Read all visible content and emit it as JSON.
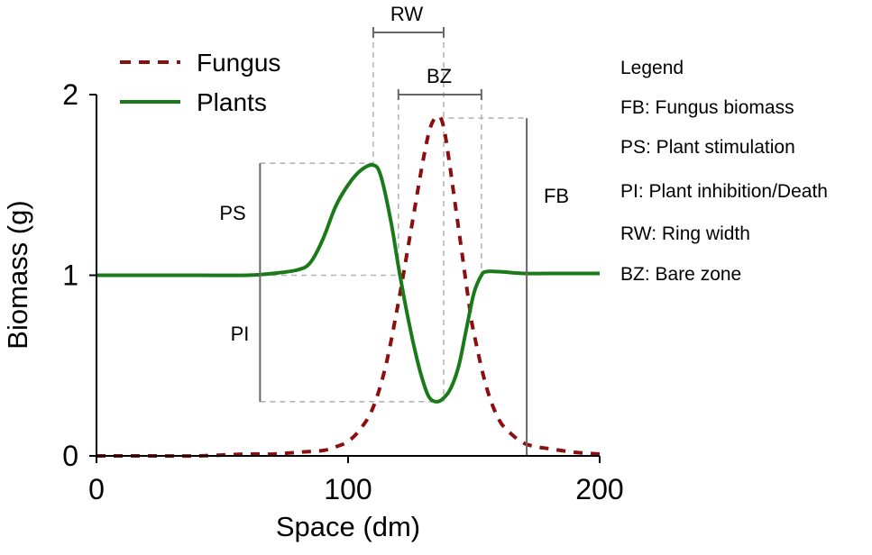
{
  "chart_data": {
    "type": "line",
    "title": "",
    "xlabel": "Space (dm)",
    "ylabel": "Biomass (g)",
    "xlim": [
      0,
      200
    ],
    "ylim": [
      0,
      2
    ],
    "xticks": [
      0,
      100,
      200
    ],
    "yticks": [
      0,
      1,
      2
    ],
    "xtick_labels": [
      "0",
      "100",
      "200"
    ],
    "ytick_labels": [
      "0",
      "1",
      "2"
    ],
    "grid": false,
    "legend_position": "top-left",
    "series": [
      {
        "name": "Fungus",
        "color": "#8b0f0f",
        "style": "dashed",
        "x": [
          0,
          20,
          40,
          60,
          70,
          80,
          90,
          95,
          100,
          105,
          110,
          115,
          120,
          125,
          130,
          133,
          136,
          138,
          140,
          142,
          145,
          148,
          150,
          155,
          160,
          165,
          170,
          175,
          180,
          190,
          200
        ],
        "y": [
          0,
          0,
          0,
          0.01,
          0.01,
          0.02,
          0.03,
          0.05,
          0.08,
          0.15,
          0.27,
          0.5,
          0.85,
          1.25,
          1.65,
          1.83,
          1.88,
          1.82,
          1.65,
          1.45,
          1.15,
          0.85,
          0.68,
          0.38,
          0.2,
          0.12,
          0.07,
          0.05,
          0.04,
          0.02,
          0.01
        ]
      },
      {
        "name": "Plants",
        "color": "#1a7a1a",
        "style": "solid",
        "x": [
          0,
          20,
          40,
          60,
          70,
          80,
          85,
          90,
          95,
          100,
          105,
          110,
          113,
          117,
          120,
          123,
          126,
          129,
          132,
          135,
          138,
          141,
          144,
          147,
          150,
          153,
          155,
          160,
          170,
          180,
          200
        ],
        "y": [
          1,
          1,
          1,
          1,
          1.01,
          1.03,
          1.07,
          1.2,
          1.38,
          1.5,
          1.58,
          1.61,
          1.55,
          1.3,
          1.05,
          0.82,
          0.62,
          0.45,
          0.33,
          0.3,
          0.32,
          0.38,
          0.5,
          0.7,
          0.9,
          1.0,
          1.02,
          1.02,
          1.01,
          1.01,
          1.01
        ]
      }
    ],
    "annotations": {
      "RW": {
        "label": "RW",
        "x_from": 110,
        "x_to": 138
      },
      "BZ": {
        "label": "BZ",
        "x_from": 120,
        "x_to": 153
      },
      "PS": {
        "label": "PS",
        "x": 65,
        "y_from": 1.0,
        "y_to": 1.62
      },
      "PI": {
        "label": "PI",
        "x": 65,
        "y_from": 0.3,
        "y_to": 1.0
      },
      "FB": {
        "label": "FB",
        "x": 171,
        "y_from": 0,
        "y_to": 1.87
      }
    },
    "side_legend": {
      "title": "Legend",
      "items": [
        "FB: Fungus biomass",
        "PS: Plant stimulation",
        "PI: Plant inhibition/Death",
        "RW: Ring width",
        "BZ: Bare zone"
      ]
    }
  }
}
